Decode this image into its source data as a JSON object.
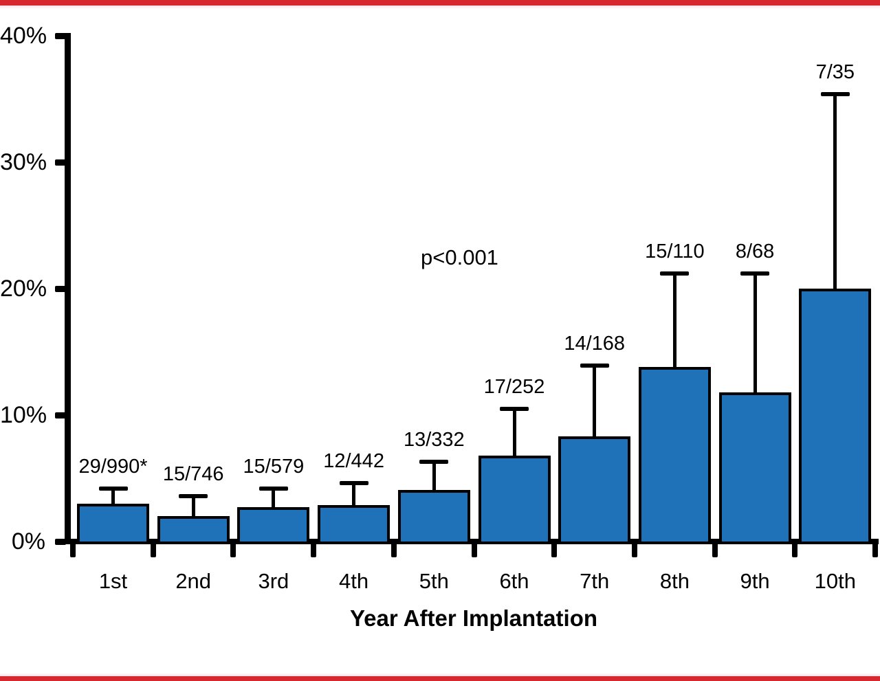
{
  "figure": {
    "top_rule_color": "#d7282f",
    "bottom_rule_color": "#d7282f"
  },
  "chart_data": {
    "type": "bar",
    "title": "",
    "xlabel": "Year After Implantation",
    "ylabel": "",
    "annotation": "p<0.001",
    "categories": [
      "1st",
      "2nd",
      "3rd",
      "4th",
      "5th",
      "6th",
      "7th",
      "8th",
      "9th",
      "10th"
    ],
    "values": [
      3.0,
      2.0,
      2.7,
      2.9,
      4.1,
      6.8,
      8.3,
      13.8,
      11.8,
      20.0
    ],
    "error_upper": [
      4.2,
      3.6,
      4.2,
      4.6,
      6.3,
      10.5,
      13.9,
      21.2,
      21.2,
      35.4
    ],
    "bar_labels": [
      "29/990*",
      "15/746",
      "15/579",
      "12/442",
      "13/332",
      "17/252",
      "14/168",
      "15/110",
      "8/68",
      "7/35"
    ],
    "y_tick_labels": [
      "40%",
      "30%",
      "20%",
      "10%",
      "0%"
    ],
    "y_tick_values": [
      40,
      30,
      20,
      10,
      0
    ],
    "ylim": [
      0,
      40
    ],
    "bar_color": "#1f72b8",
    "bar_border_color": "#000000",
    "axis_color": "#000000",
    "text_color": "#000000",
    "grid": false,
    "legend": "none"
  }
}
